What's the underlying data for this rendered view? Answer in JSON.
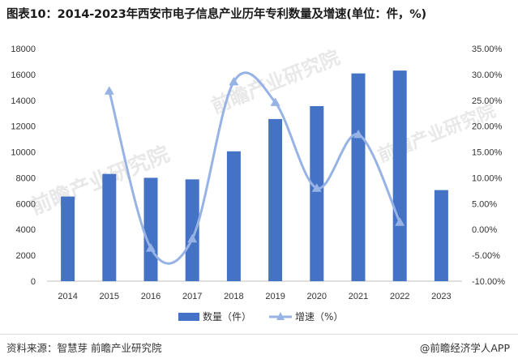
{
  "title": "图表10：2014-2023年西安市电子信息产业历年专利数量及增速(单位：件，%)",
  "source": "资料来源：智慧芽 前瞻产业研究院",
  "brand": "@前瞻经济学人APP",
  "watermark": "前瞻产业研究院",
  "chart_data": {
    "type": "bar",
    "categories": [
      "2014",
      "2015",
      "2016",
      "2017",
      "2018",
      "2019",
      "2020",
      "2021",
      "2022",
      "2023"
    ],
    "series": [
      {
        "name": "数量（件）",
        "type": "bar",
        "axis": "left",
        "color": "#4472C4",
        "values": [
          6550,
          8300,
          8000,
          7880,
          10050,
          12550,
          13550,
          16080,
          16300,
          7050
        ]
      },
      {
        "name": "增速（%）",
        "type": "line",
        "axis": "right",
        "color": "#97B3E6",
        "marker": "triangle",
        "values": [
          null,
          26.8,
          -3.6,
          -1.8,
          28.6,
          24.6,
          8.0,
          18.4,
          1.4,
          null
        ]
      }
    ],
    "y_left": {
      "ylim": [
        0,
        18000
      ],
      "ticks": [
        "0",
        "2000",
        "4000",
        "6000",
        "8000",
        "10000",
        "12000",
        "14000",
        "16000",
        "18000"
      ]
    },
    "y_right": {
      "ylim": [
        -10,
        35
      ],
      "ticks": [
        "-10.00%",
        "-5.00%",
        "0.00%",
        "5.00%",
        "10.00%",
        "15.00%",
        "20.00%",
        "25.00%",
        "30.00%",
        "35.00%"
      ]
    },
    "legend_position": "bottom",
    "grid": false
  }
}
